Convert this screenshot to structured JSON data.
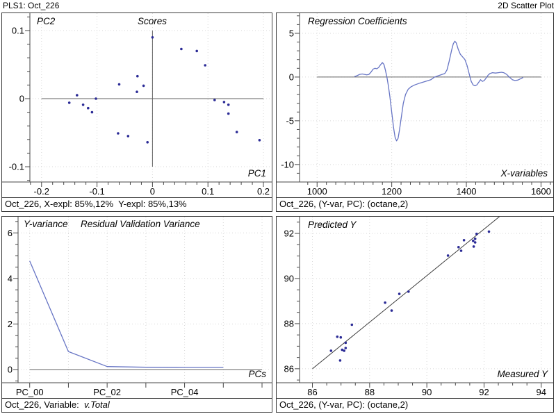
{
  "header": {
    "left": "PLS1: Oct_226",
    "right": "2D Scatter Plot"
  },
  "colors": {
    "curve_blue": "#6674c4",
    "point_navy": "#2b2b96",
    "axis_gray": "#474747"
  },
  "chart_data": [
    {
      "type": "scatter",
      "title": "Scores",
      "x_axis": {
        "label": "PC1",
        "min": -0.221,
        "max": 0.2125,
        "ticks": [
          -0.2,
          -0.1,
          0,
          0.1,
          0.2
        ],
        "tick_labels": [
          "-0.2",
          "-0.1",
          "0",
          "0.1",
          "0.2"
        ],
        "minor_step": 0.02
      },
      "y_axis": {
        "label": "PC2",
        "min": -0.1224,
        "max": 0.1255,
        "ticks": [
          0.1,
          0,
          -0.1
        ],
        "tick_labels": [
          "0.1",
          "0",
          "-0.1"
        ],
        "minor_step": 0.02
      },
      "grid": true,
      "ref_lines": [
        {
          "axis": "h",
          "at": 0,
          "from": -0.2,
          "to": 0.2
        },
        {
          "axis": "v",
          "at": 0,
          "from": -0.1,
          "to": 0.1
        }
      ],
      "points": [
        [
          0.0,
          0.09
        ],
        [
          0.052,
          0.073
        ],
        [
          0.08,
          0.07
        ],
        [
          0.095,
          0.049
        ],
        [
          -0.027,
          0.033
        ],
        [
          -0.06,
          0.021
        ],
        [
          -0.016,
          0.019
        ],
        [
          -0.028,
          0.01
        ],
        [
          -0.136,
          0.005
        ],
        [
          -0.102,
          0.0
        ],
        [
          -0.15,
          -0.006
        ],
        [
          -0.125,
          -0.009
        ],
        [
          -0.116,
          -0.014
        ],
        [
          -0.109,
          -0.02
        ],
        [
          0.112,
          -0.002
        ],
        [
          0.129,
          -0.005
        ],
        [
          0.137,
          -0.009
        ],
        [
          0.137,
          -0.022
        ],
        [
          -0.062,
          -0.051
        ],
        [
          -0.044,
          -0.055
        ],
        [
          -0.009,
          -0.064
        ],
        [
          0.152,
          -0.049
        ],
        [
          0.193,
          -0.061
        ]
      ],
      "status": "Oct_226, X-expl: 85%,12%  Y-expl: 85%,13%"
    },
    {
      "type": "line",
      "title": "Regression Coefficients",
      "x_axis": {
        "label": "X-variables",
        "min": 953,
        "max": 1629,
        "ticks": [
          1000,
          1200,
          1400,
          1600
        ],
        "tick_labels": [
          "1000",
          "1200",
          "1400",
          "1600"
        ],
        "minor_step": 25
      },
      "y_axis": {
        "min": -12,
        "max": 7.3,
        "ticks": [
          5,
          0,
          -5,
          -10
        ],
        "tick_labels": [
          "5",
          "0",
          "-5",
          "-10"
        ],
        "minor_step": 1
      },
      "grid": true,
      "ref_lines": [
        {
          "axis": "h",
          "at": 0,
          "from": 1000,
          "to": 1600
        }
      ],
      "line": [
        [
          1100,
          0.05
        ],
        [
          1107,
          0.15
        ],
        [
          1114,
          0.3
        ],
        [
          1121,
          0.35
        ],
        [
          1127,
          0.3
        ],
        [
          1133,
          0.25
        ],
        [
          1139,
          0.3
        ],
        [
          1145,
          0.6
        ],
        [
          1150,
          0.9
        ],
        [
          1155,
          1.0
        ],
        [
          1160,
          0.95
        ],
        [
          1165,
          1.1
        ],
        [
          1170,
          1.4
        ],
        [
          1175,
          1.65
        ],
        [
          1179,
          1.45
        ],
        [
          1183,
          0.8
        ],
        [
          1187,
          0
        ],
        [
          1191,
          -1
        ],
        [
          1195,
          -2.2
        ],
        [
          1200,
          -4
        ],
        [
          1205,
          -5.8
        ],
        [
          1209,
          -6.9
        ],
        [
          1213,
          -7.3
        ],
        [
          1217,
          -7
        ],
        [
          1221,
          -6
        ],
        [
          1226,
          -4.5
        ],
        [
          1231,
          -3
        ],
        [
          1237,
          -2
        ],
        [
          1244,
          -1.4
        ],
        [
          1252,
          -1.1
        ],
        [
          1262,
          -0.9
        ],
        [
          1275,
          -0.7
        ],
        [
          1290,
          -0.5
        ],
        [
          1305,
          -0.3
        ],
        [
          1315,
          0
        ],
        [
          1325,
          0.15
        ],
        [
          1335,
          0.3
        ],
        [
          1342,
          0.4
        ],
        [
          1348,
          0.8
        ],
        [
          1354,
          1.8
        ],
        [
          1360,
          3
        ],
        [
          1365,
          3.8
        ],
        [
          1369,
          4.1
        ],
        [
          1373,
          3.9
        ],
        [
          1378,
          3.2
        ],
        [
          1384,
          2.6
        ],
        [
          1390,
          2.3
        ],
        [
          1396,
          2
        ],
        [
          1402,
          1.3
        ],
        [
          1408,
          0.3
        ],
        [
          1413,
          -0.5
        ],
        [
          1418,
          -0.9
        ],
        [
          1423,
          -1
        ],
        [
          1428,
          -0.9
        ],
        [
          1433,
          -0.6
        ],
        [
          1438,
          -0.3
        ],
        [
          1443,
          -0.5
        ],
        [
          1448,
          -0.4
        ],
        [
          1453,
          -0.1
        ],
        [
          1458,
          0.2
        ],
        [
          1463,
          0.4
        ],
        [
          1470,
          0.5
        ],
        [
          1478,
          0.45
        ],
        [
          1486,
          0.5
        ],
        [
          1494,
          0.55
        ],
        [
          1500,
          0.5
        ],
        [
          1508,
          0.3
        ],
        [
          1515,
          0
        ],
        [
          1523,
          -0.3
        ],
        [
          1530,
          -0.4
        ],
        [
          1538,
          -0.35
        ],
        [
          1545,
          -0.2
        ],
        [
          1552,
          -0.05
        ]
      ],
      "status": "Oct_226, (Y-var, PC): (octane,2)"
    },
    {
      "type": "line",
      "title": "Residual Validation Variance",
      "x_axis": {
        "label": "PCs",
        "min": -0.3,
        "max": 6.215,
        "ticks": [
          0,
          1,
          2,
          3,
          4,
          5,
          6
        ],
        "tick_labels": [
          "PC_00",
          "",
          "PC_02",
          "",
          "PC_04",
          "",
          ""
        ]
      },
      "y_axis": {
        "label": "Y-variance",
        "min": -0.58,
        "max": 6.71,
        "ticks": [
          6,
          4,
          2,
          0
        ],
        "tick_labels": [
          "6",
          "4",
          "2",
          "0"
        ],
        "minor_step": 0.5
      },
      "grid": true,
      "ref_lines": [
        {
          "axis": "h",
          "at": 0,
          "from": 0,
          "to": 6
        }
      ],
      "line": [
        [
          0,
          4.77
        ],
        [
          1,
          0.79
        ],
        [
          2,
          0.13
        ],
        [
          3,
          0.1
        ],
        [
          4,
          0.09
        ],
        [
          5,
          0.09
        ]
      ],
      "status_prefix": "Oct_226, Variable:  ",
      "status_value": "v.Total"
    },
    {
      "type": "scatter",
      "title": "Predicted Y",
      "x_axis": {
        "label": "Measured Y",
        "min": 85.55,
        "max": 94.37,
        "ticks": [
          86,
          88,
          90,
          92,
          94
        ],
        "tick_labels": [
          "86",
          "88",
          "90",
          "92",
          "94"
        ],
        "minor_step": 0.5
      },
      "y_axis": {
        "min": 85.38,
        "max": 92.74,
        "ticks": [
          92,
          90,
          88,
          86
        ],
        "tick_labels": [
          "92",
          "90",
          "88",
          "86"
        ],
        "minor_step": 0.5
      },
      "grid": true,
      "fit_line": [
        [
          86.0,
          86.0
        ],
        [
          92.63,
          92.84
        ]
      ],
      "points": [
        [
          86.65,
          86.8
        ],
        [
          86.87,
          87.42
        ],
        [
          86.99,
          87.39
        ],
        [
          86.97,
          86.37
        ],
        [
          87.04,
          86.84
        ],
        [
          87.11,
          86.8
        ],
        [
          87.16,
          86.92
        ],
        [
          87.16,
          87.15
        ],
        [
          87.38,
          87.95
        ],
        [
          88.54,
          88.93
        ],
        [
          88.77,
          88.58
        ],
        [
          89.04,
          89.32
        ],
        [
          89.36,
          89.42
        ],
        [
          90.74,
          91.02
        ],
        [
          91.11,
          91.39
        ],
        [
          91.2,
          91.23
        ],
        [
          91.3,
          91.7
        ],
        [
          91.62,
          91.67
        ],
        [
          91.64,
          91.42
        ],
        [
          91.69,
          91.76
        ],
        [
          91.69,
          91.6
        ],
        [
          91.74,
          91.98
        ],
        [
          92.17,
          92.08
        ]
      ],
      "status": "Oct_226, (Y-var, PC): (octane,2)"
    }
  ]
}
